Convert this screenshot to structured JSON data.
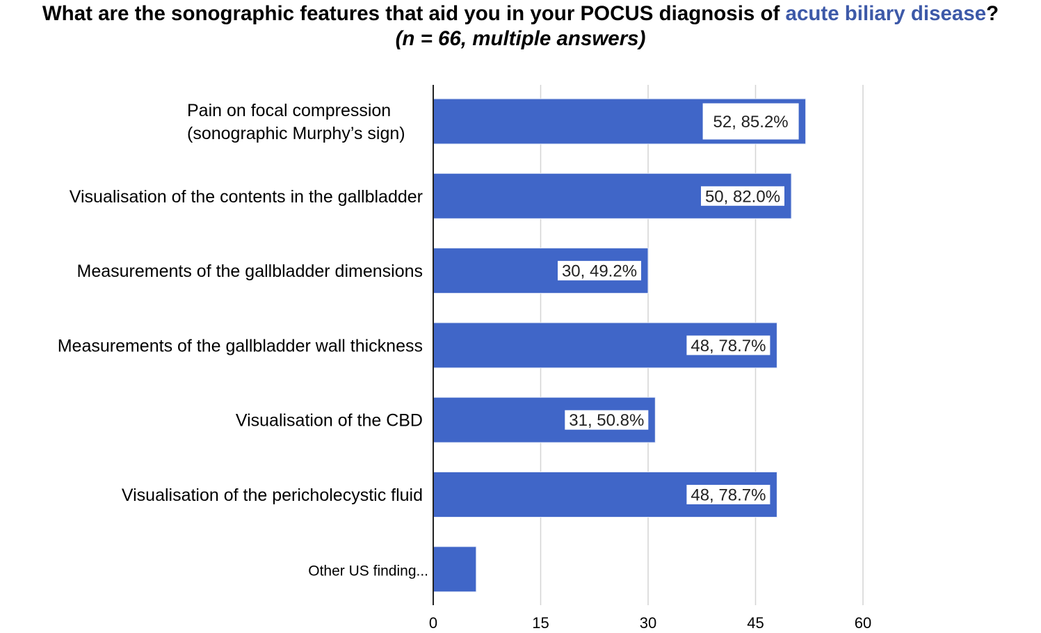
{
  "title": {
    "prefix": "What are the sonographic features that aid you in your POCUS diagnosis of ",
    "highlight": "acute biliary disease",
    "suffix": "?",
    "subtitle": "(n = 66, multiple answers)"
  },
  "colors": {
    "bar": "#4066c8",
    "highlight": "#3d59a8",
    "grid": "#d4d4d4",
    "axis": "#222222"
  },
  "chart_data": {
    "type": "bar",
    "orientation": "horizontal",
    "title": "What are the sonographic features that aid you in your POCUS diagnosis of acute biliary disease?",
    "subtitle": "(n = 66, multiple answers)",
    "categories": [
      [
        "Pain on focal compression",
        "(sonographic Murphy’s sign)"
      ],
      [
        "Visualisation of the contents in the gallbladder"
      ],
      [
        "Measurements of the gallbladder dimensions"
      ],
      [
        "Measurements of the gallbladder wall thickness"
      ],
      [
        "Visualisation of the CBD"
      ],
      [
        "Visualisation of the pericholecystic fluid"
      ],
      [
        "Other US finding..."
      ]
    ],
    "values": [
      52,
      50,
      30,
      48,
      31,
      48,
      6
    ],
    "data_labels": [
      "52, 85.2%",
      "50, 82.0%",
      "30, 49.2%",
      "48, 78.7%",
      "31, 50.8%",
      "48, 78.7%",
      ""
    ],
    "xlim": [
      0,
      60
    ],
    "xticks": [
      0,
      15,
      30,
      45,
      60
    ],
    "grid": true,
    "legend": "none"
  }
}
